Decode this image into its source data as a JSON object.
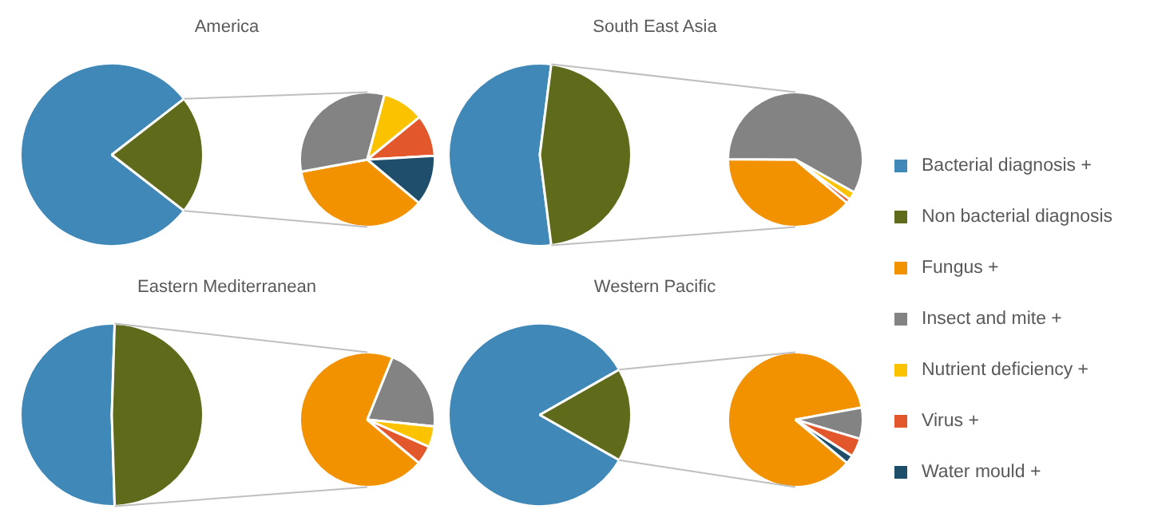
{
  "chart_data": [
    {
      "type": "pie",
      "title": "America",
      "legend": "right",
      "categories": [
        "Bacterial diagnosis +",
        "Non bacterial diagnosis",
        "Fungus +",
        "Insect and mite +",
        "Nutrient deficiency +",
        "Virus +",
        "Water mould +"
      ],
      "colors": [
        "#3f88b8",
        "#5f6b1a",
        "#f39200",
        "#838383",
        "#fbc200",
        "#e2572b",
        "#1f4e6b"
      ],
      "series": [
        {
          "values": [
            79,
            21,
            null,
            null,
            null,
            null,
            null
          ]
        },
        {
          "values": [
            null,
            null,
            36,
            32,
            10,
            10,
            12
          ]
        }
      ]
    },
    {
      "type": "pie",
      "title": "South East Asia",
      "colors": [
        "#3f88b8",
        "#5f6b1a",
        "#f39200",
        "#838383",
        "#fbc200",
        "#e2572b",
        "#1f4e6b"
      ],
      "series": [
        {
          "values": [
            54,
            46,
            null,
            null,
            null,
            null,
            null
          ]
        },
        {
          "values": [
            null,
            null,
            39,
            58,
            2,
            1,
            null
          ]
        }
      ]
    },
    {
      "type": "pie",
      "title": "Eastern Mediterranean",
      "colors": [
        "#3f88b8",
        "#5f6b1a",
        "#f39200",
        "#838383",
        "#fbc200",
        "#e2572b",
        "#1f4e6b"
      ],
      "series": [
        {
          "values": [
            51,
            49,
            null,
            null,
            null,
            null,
            null
          ]
        },
        {
          "values": [
            null,
            null,
            70,
            20.5,
            5,
            4.5,
            null
          ]
        }
      ]
    },
    {
      "type": "pie",
      "title": "Western Pacific",
      "colors": [
        "#3f88b8",
        "#5f6b1a",
        "#f39200",
        "#838383",
        "#fbc200",
        "#e2572b",
        "#1f4e6b"
      ],
      "series": [
        {
          "values": [
            83.5,
            16.5,
            null,
            null,
            null,
            null,
            null
          ]
        },
        {
          "values": [
            null,
            null,
            86,
            7.5,
            null,
            4.5,
            2
          ]
        }
      ]
    }
  ]
}
